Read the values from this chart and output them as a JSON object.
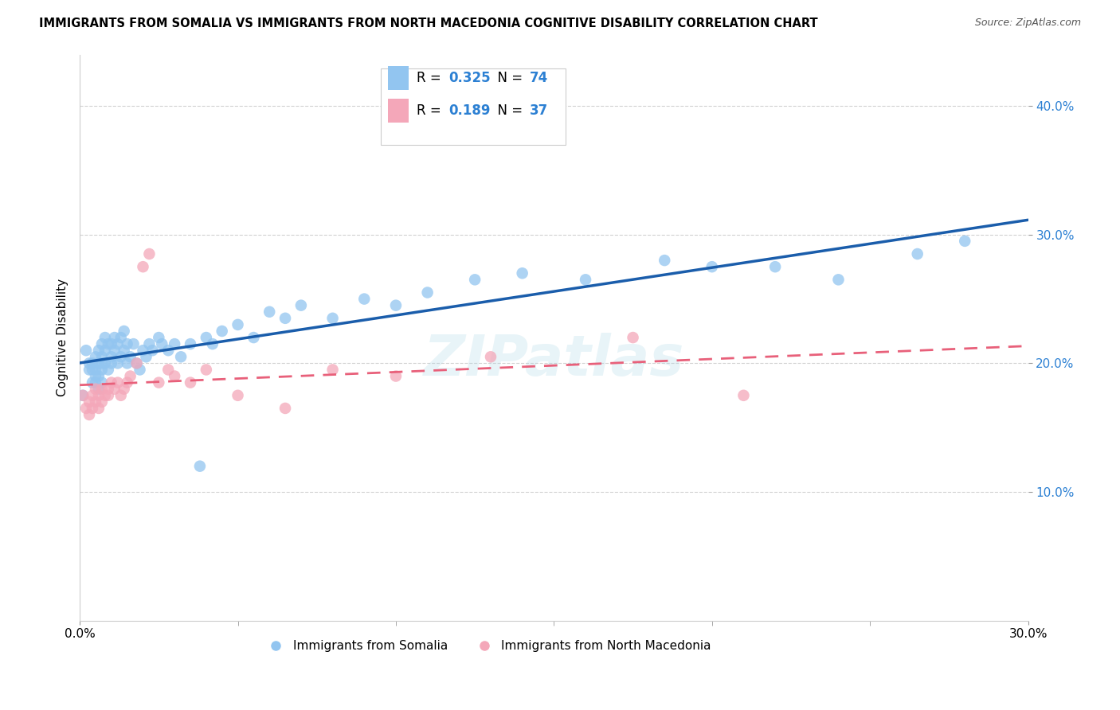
{
  "title": "IMMIGRANTS FROM SOMALIA VS IMMIGRANTS FROM NORTH MACEDONIA COGNITIVE DISABILITY CORRELATION CHART",
  "source": "Source: ZipAtlas.com",
  "xlabel_somalia": "Immigrants from Somalia",
  "xlabel_macedonia": "Immigrants from North Macedonia",
  "ylabel": "Cognitive Disability",
  "xlim": [
    0.0,
    0.3
  ],
  "ylim": [
    0.0,
    0.44
  ],
  "yticks": [
    0.1,
    0.2,
    0.3,
    0.4
  ],
  "xticks": [
    0.0,
    0.3
  ],
  "R_somalia": 0.325,
  "N_somalia": 74,
  "R_macedonia": 0.189,
  "N_macedonia": 37,
  "somalia_color": "#92C5F0",
  "macedonia_color": "#F4A7B9",
  "somalia_line_color": "#1A5DAB",
  "macedonia_line_color": "#E8607A",
  "background_color": "#ffffff",
  "grid_color": "#cccccc",
  "watermark": "ZIPatlas",
  "somalia_x": [
    0.001,
    0.002,
    0.003,
    0.003,
    0.004,
    0.004,
    0.004,
    0.005,
    0.005,
    0.005,
    0.005,
    0.006,
    0.006,
    0.006,
    0.006,
    0.007,
    0.007,
    0.007,
    0.007,
    0.007,
    0.008,
    0.008,
    0.008,
    0.009,
    0.009,
    0.01,
    0.01,
    0.01,
    0.011,
    0.011,
    0.012,
    0.012,
    0.013,
    0.013,
    0.014,
    0.014,
    0.015,
    0.015,
    0.016,
    0.017,
    0.018,
    0.019,
    0.02,
    0.021,
    0.022,
    0.023,
    0.025,
    0.026,
    0.028,
    0.03,
    0.032,
    0.035,
    0.038,
    0.04,
    0.042,
    0.045,
    0.05,
    0.055,
    0.06,
    0.065,
    0.07,
    0.08,
    0.09,
    0.1,
    0.11,
    0.125,
    0.14,
    0.16,
    0.185,
    0.2,
    0.22,
    0.24,
    0.265,
    0.28
  ],
  "somalia_y": [
    0.175,
    0.21,
    0.195,
    0.2,
    0.185,
    0.195,
    0.2,
    0.19,
    0.195,
    0.185,
    0.205,
    0.18,
    0.19,
    0.2,
    0.21,
    0.185,
    0.195,
    0.2,
    0.205,
    0.215,
    0.22,
    0.2,
    0.21,
    0.215,
    0.195,
    0.2,
    0.205,
    0.215,
    0.21,
    0.22,
    0.2,
    0.215,
    0.205,
    0.22,
    0.21,
    0.225,
    0.215,
    0.2,
    0.205,
    0.215,
    0.2,
    0.195,
    0.21,
    0.205,
    0.215,
    0.21,
    0.22,
    0.215,
    0.21,
    0.215,
    0.205,
    0.215,
    0.12,
    0.22,
    0.215,
    0.225,
    0.23,
    0.22,
    0.24,
    0.235,
    0.245,
    0.235,
    0.25,
    0.245,
    0.255,
    0.265,
    0.27,
    0.265,
    0.28,
    0.275,
    0.275,
    0.265,
    0.285,
    0.295
  ],
  "macedonia_x": [
    0.001,
    0.002,
    0.003,
    0.003,
    0.004,
    0.004,
    0.005,
    0.005,
    0.006,
    0.006,
    0.007,
    0.007,
    0.008,
    0.009,
    0.009,
    0.01,
    0.011,
    0.012,
    0.013,
    0.014,
    0.015,
    0.016,
    0.018,
    0.02,
    0.022,
    0.025,
    0.028,
    0.03,
    0.035,
    0.04,
    0.05,
    0.065,
    0.08,
    0.1,
    0.13,
    0.175,
    0.21
  ],
  "macedonia_y": [
    0.175,
    0.165,
    0.17,
    0.16,
    0.165,
    0.175,
    0.17,
    0.18,
    0.175,
    0.165,
    0.18,
    0.17,
    0.175,
    0.175,
    0.18,
    0.185,
    0.18,
    0.185,
    0.175,
    0.18,
    0.185,
    0.19,
    0.2,
    0.275,
    0.285,
    0.185,
    0.195,
    0.19,
    0.185,
    0.195,
    0.175,
    0.165,
    0.195,
    0.19,
    0.205,
    0.22,
    0.175
  ],
  "somalia_line_y0": 0.205,
  "somalia_line_y1": 0.295,
  "macedonia_line_y0": 0.175,
  "macedonia_line_y1": 0.245
}
